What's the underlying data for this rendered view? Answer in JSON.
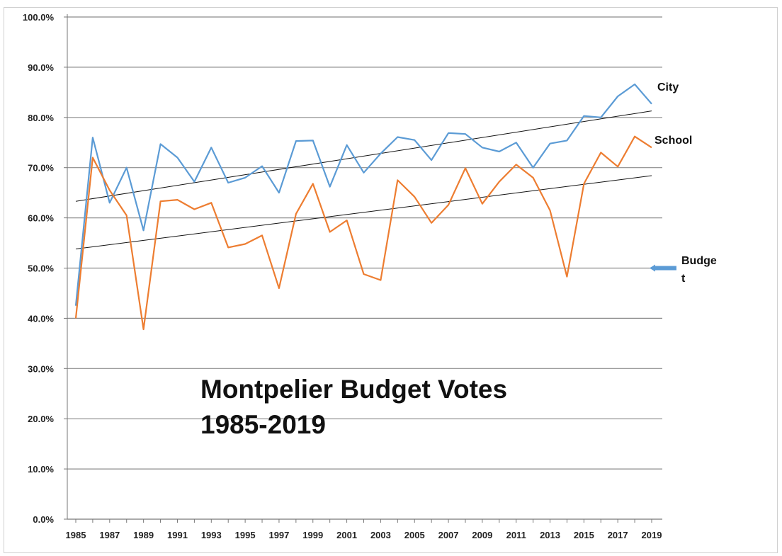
{
  "chart_data": {
    "type": "line",
    "title_lines": [
      "Montpelier Budget Votes",
      "1985-2019"
    ],
    "xlabel": "",
    "ylabel": "",
    "ylim": [
      0,
      100
    ],
    "ytick_labels": [
      "0.0%",
      "10.0%",
      "20.0%",
      "30.0%",
      "40.0%",
      "50.0%",
      "60.0%",
      "70.0%",
      "80.0%",
      "90.0%",
      "100.0%"
    ],
    "ytick_values": [
      0,
      10,
      20,
      30,
      40,
      50,
      60,
      70,
      80,
      90,
      100
    ],
    "xtick_labels": [
      "1985",
      "1987",
      "1989",
      "1991",
      "1993",
      "1995",
      "1997",
      "1999",
      "2001",
      "2003",
      "2005",
      "2007",
      "2009",
      "2011",
      "2013",
      "2015",
      "2017",
      "2019"
    ],
    "grid": true,
    "x": [
      1985,
      1986,
      1987,
      1988,
      1989,
      1990,
      1991,
      1992,
      1993,
      1994,
      1995,
      1996,
      1997,
      1998,
      1999,
      2000,
      2001,
      2002,
      2003,
      2004,
      2005,
      2006,
      2007,
      2008,
      2009,
      2010,
      2011,
      2012,
      2013,
      2014,
      2015,
      2016,
      2017,
      2018,
      2019
    ],
    "series": [
      {
        "name": "City",
        "color": "#5b9bd5",
        "values": [
          42.5,
          76.0,
          63.0,
          70.0,
          57.5,
          74.7,
          72.0,
          67.2,
          74.0,
          67.0,
          68.0,
          70.3,
          65.0,
          75.3,
          75.4,
          66.2,
          74.5,
          69.0,
          72.8,
          76.1,
          75.5,
          71.5,
          76.9,
          76.7,
          74.0,
          73.2,
          75.0,
          70.0,
          74.8,
          75.4,
          80.3,
          80.0,
          84.2,
          86.6,
          82.7
        ]
      },
      {
        "name": "School",
        "color": "#ed7d31",
        "values": [
          40.0,
          72.0,
          65.5,
          60.5,
          37.8,
          63.3,
          63.6,
          61.7,
          63.0,
          54.1,
          54.8,
          56.5,
          46.0,
          60.8,
          66.8,
          57.2,
          59.5,
          48.8,
          47.6,
          67.5,
          64.2,
          59.0,
          62.6,
          69.9,
          62.8,
          67.2,
          70.6,
          68.0,
          61.5,
          48.3,
          66.8,
          73.0,
          70.2,
          76.2,
          74.0
        ]
      }
    ],
    "trendlines": [
      {
        "of": "City",
        "color": "#111111",
        "start": 63.3,
        "end": 81.3
      },
      {
        "of": "School",
        "color": "#111111",
        "start": 53.8,
        "end": 68.4
      }
    ],
    "reference": {
      "label_lines": [
        "Budge",
        "t"
      ],
      "value": 50,
      "arrow_color": "#5b9bd5"
    }
  }
}
